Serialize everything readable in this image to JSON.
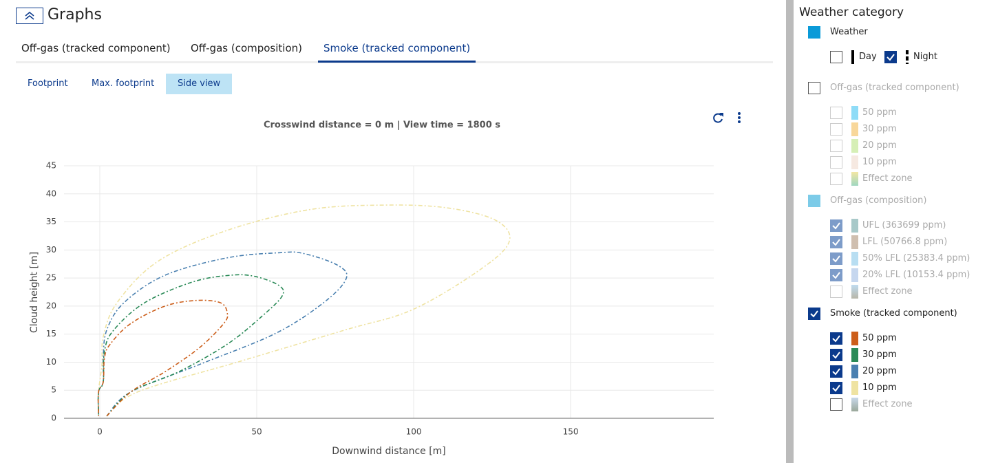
{
  "header": {
    "title": "Graphs"
  },
  "tabs": [
    {
      "label": "Off-gas (tracked component)",
      "selected": false
    },
    {
      "label": "Off-gas (composition)",
      "selected": false
    },
    {
      "label": "Smoke (tracked component)",
      "selected": true
    }
  ],
  "subtabs": [
    {
      "label": "Footprint",
      "selected": false
    },
    {
      "label": "Max. footprint",
      "selected": false
    },
    {
      "label": "Side view",
      "selected": true
    }
  ],
  "chart_data": {
    "type": "line",
    "title": "Crosswind distance = 0 m | View time = 1800 s",
    "x_label": "Downwind distance [m]",
    "y_label": "Cloud height [m]",
    "xlim": [
      -11.4,
      195.6
    ],
    "ylim": [
      0,
      45
    ],
    "xticks": [
      0,
      50,
      100,
      150
    ],
    "yticks": [
      0,
      5,
      10,
      15,
      20,
      25,
      30,
      35,
      40,
      45
    ],
    "grid": true,
    "line_style": "dash-dot",
    "series": [
      {
        "name": "10 ppm",
        "color": "#efe3a2",
        "x": [
          2.2,
          12.1,
          45,
          77.9,
          99.8,
          121.7,
          130.5,
          126.1,
          110.7,
          91,
          66.9,
          40.6,
          18.6,
          5.5,
          1.1,
          0.7,
          -0.4,
          -0.4
        ],
        "values": [
          0.4,
          4.7,
          10.2,
          15.7,
          19.4,
          26.7,
          31.6,
          35.3,
          37.5,
          38,
          37.2,
          33.5,
          28,
          20.6,
          14.5,
          9.6,
          4.7,
          0.4
        ]
      },
      {
        "name": "20 ppm",
        "color": "#4a80b0",
        "x": [
          2.2,
          9.9,
          31.8,
          55.9,
          71.3,
          78.5,
          75.7,
          64.7,
          57,
          40.6,
          20.8,
          7.7,
          2.2,
          1.1,
          1.1,
          -0.4,
          -0.4
        ],
        "values": [
          0.4,
          4.7,
          9.6,
          15.1,
          20.6,
          24.9,
          27.3,
          29.4,
          29.5,
          28.6,
          25.5,
          20.6,
          15.7,
          10.8,
          6.5,
          4.7,
          0.4
        ]
      },
      {
        "name": "30 ppm",
        "color": "#2a8a57",
        "x": [
          2.2,
          9.9,
          25.2,
          40.6,
          51.5,
          58.1,
          57,
          49.3,
          41.7,
          29.6,
          14.3,
          4.4,
          1.5,
          1.1,
          -0.4,
          -0.4
        ],
        "values": [
          0.4,
          4.7,
          8.3,
          13.2,
          18.1,
          21.8,
          23.7,
          25.3,
          25.5,
          24.3,
          20.6,
          15.7,
          12,
          6.5,
          4.7,
          0.4
        ]
      },
      {
        "name": "50 ppm",
        "color": "#cc5e1a",
        "x": [
          2.2,
          9.9,
          20.8,
          31.8,
          39.5,
          40.6,
          38.4,
          30.7,
          20.8,
          9.9,
          3.3,
          1.5,
          1.1,
          -0.4,
          -0.4
        ],
        "values": [
          0.4,
          4.7,
          8.3,
          12.6,
          16.9,
          18.8,
          20.6,
          21,
          20,
          16.9,
          13.2,
          10.8,
          6.5,
          4.7,
          0.4
        ]
      }
    ]
  },
  "sidebar": {
    "title": "Weather category",
    "groups": [
      {
        "label": "Weather",
        "state": "filled",
        "color": "#0a9ad8",
        "disabled": false,
        "inline": true,
        "items": [
          {
            "label": "Day",
            "checked": false,
            "line_style": "solid"
          },
          {
            "label": "Night",
            "checked": true,
            "line_style": "dashed"
          }
        ]
      },
      {
        "label": "Off-gas (tracked component)",
        "state": "unchecked",
        "disabled": true,
        "inline": false,
        "items": [
          {
            "label": "50 ppm",
            "checked": false,
            "color": "#8fdcf7"
          },
          {
            "label": "30 ppm",
            "checked": false,
            "color": "#f8d79a"
          },
          {
            "label": "20 ppm",
            "checked": false,
            "color": "#d6efb6"
          },
          {
            "label": "10 ppm",
            "checked": false,
            "color": "#f6e9e1"
          },
          {
            "label": "Effect zone",
            "checked": false,
            "color": [
              "#9fd7c0",
              "#f3e7a4"
            ]
          }
        ]
      },
      {
        "label": "Off-gas (composition)",
        "state": "filled",
        "color": "#7ccbe8",
        "disabled": true,
        "inline": false,
        "items": [
          {
            "label": "UFL (363699 ppm)",
            "checked": true,
            "color": "#a8c9c9"
          },
          {
            "label": "LFL (50766.8 ppm)",
            "checked": true,
            "color": "#cfbfb0"
          },
          {
            "label": "50% LFL (25383.4 ppm)",
            "checked": true,
            "color": "#b8def2"
          },
          {
            "label": "20% LFL (10153.4 ppm)",
            "checked": true,
            "color": "#c6d7ef"
          },
          {
            "label": "Effect zone",
            "checked": false,
            "color": [
              "#b8b6a8",
              "#c0dcf0"
            ]
          }
        ]
      },
      {
        "label": "Smoke (tracked component)",
        "state": "checked",
        "disabled": false,
        "inline": false,
        "items": [
          {
            "label": "50 ppm",
            "checked": true,
            "color": "#cc5e1a"
          },
          {
            "label": "30 ppm",
            "checked": true,
            "color": "#2a8a57"
          },
          {
            "label": "20 ppm",
            "checked": true,
            "color": "#4a80b0"
          },
          {
            "label": "10 ppm",
            "checked": true,
            "color": "#efe3a2"
          },
          {
            "label": "Effect zone",
            "checked": false,
            "disabled": true,
            "color": [
              "#9aa89a",
              "#c8d8ea"
            ]
          }
        ]
      }
    ]
  }
}
